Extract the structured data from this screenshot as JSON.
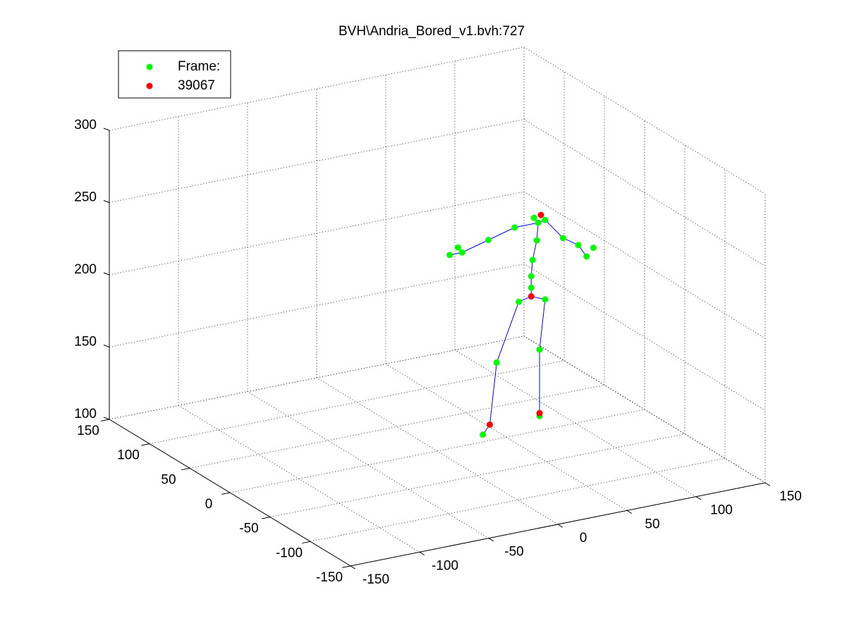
{
  "chart_data": {
    "type": "scatter3d",
    "title": "BVH\\Andria_Bored_v1.bvh:727",
    "xlim": [
      -150,
      150
    ],
    "ylim": [
      -150,
      150
    ],
    "zlim": [
      100,
      300
    ],
    "xticks": [
      -150,
      -100,
      -50,
      0,
      50,
      100,
      150
    ],
    "yticks": [
      -150,
      -100,
      -50,
      0,
      50,
      100,
      150
    ],
    "zticks": [
      100,
      150,
      200,
      250,
      300
    ],
    "grid": true,
    "legend": "upper left",
    "series": [
      {
        "name": "Frame:",
        "color": "#00ff00",
        "x": [
          70,
          78,
          73,
          56,
          37,
          18,
          15,
          9,
          72,
          69,
          68,
          68,
          91,
          102,
          113,
          108,
          59,
          43,
          33,
          78,
          74,
          74
        ],
        "y": [
          0,
          0,
          0,
          0,
          0,
          0,
          0,
          0,
          0,
          0,
          0,
          0,
          0,
          0,
          0,
          0,
          0,
          0,
          0,
          0,
          0,
          0
        ],
        "z": [
          248,
          245,
          244,
          244,
          239,
          234,
          238,
          234,
          232,
          219,
          208,
          200,
          230,
          223,
          219,
          214,
          192,
          153,
          105,
          190,
          156,
          110
        ]
      },
      {
        "name": "39067",
        "color": "#ff0000",
        "x": [
          75,
          68,
          38,
          74
        ],
        "y": [
          0,
          0,
          0,
          0
        ],
        "z": [
          249,
          194,
          111,
          112
        ]
      },
      {
        "color": "#0000ff",
        "x": [
          68,
          68,
          68,
          69,
          72,
          73,
          70,
          null,
          73,
          56,
          37,
          18,
          9,
          null,
          73,
          78,
          91,
          102,
          108,
          null,
          68,
          59,
          43,
          38,
          33,
          null,
          68,
          78,
          74,
          74,
          74
        ],
        "y": [
          0,
          0,
          0,
          0,
          0,
          0,
          0,
          null,
          0,
          0,
          0,
          0,
          0,
          null,
          0,
          0,
          0,
          0,
          0,
          null,
          0,
          0,
          0,
          0,
          0,
          null,
          0,
          0,
          0,
          0,
          0
        ],
        "z": [
          194,
          200,
          208,
          219,
          232,
          244,
          248,
          null,
          244,
          244,
          239,
          234,
          234,
          null,
          244,
          245,
          230,
          223,
          214,
          null,
          194,
          192,
          153,
          111,
          105,
          null,
          194,
          190,
          156,
          112,
          110
        ]
      }
    ]
  }
}
